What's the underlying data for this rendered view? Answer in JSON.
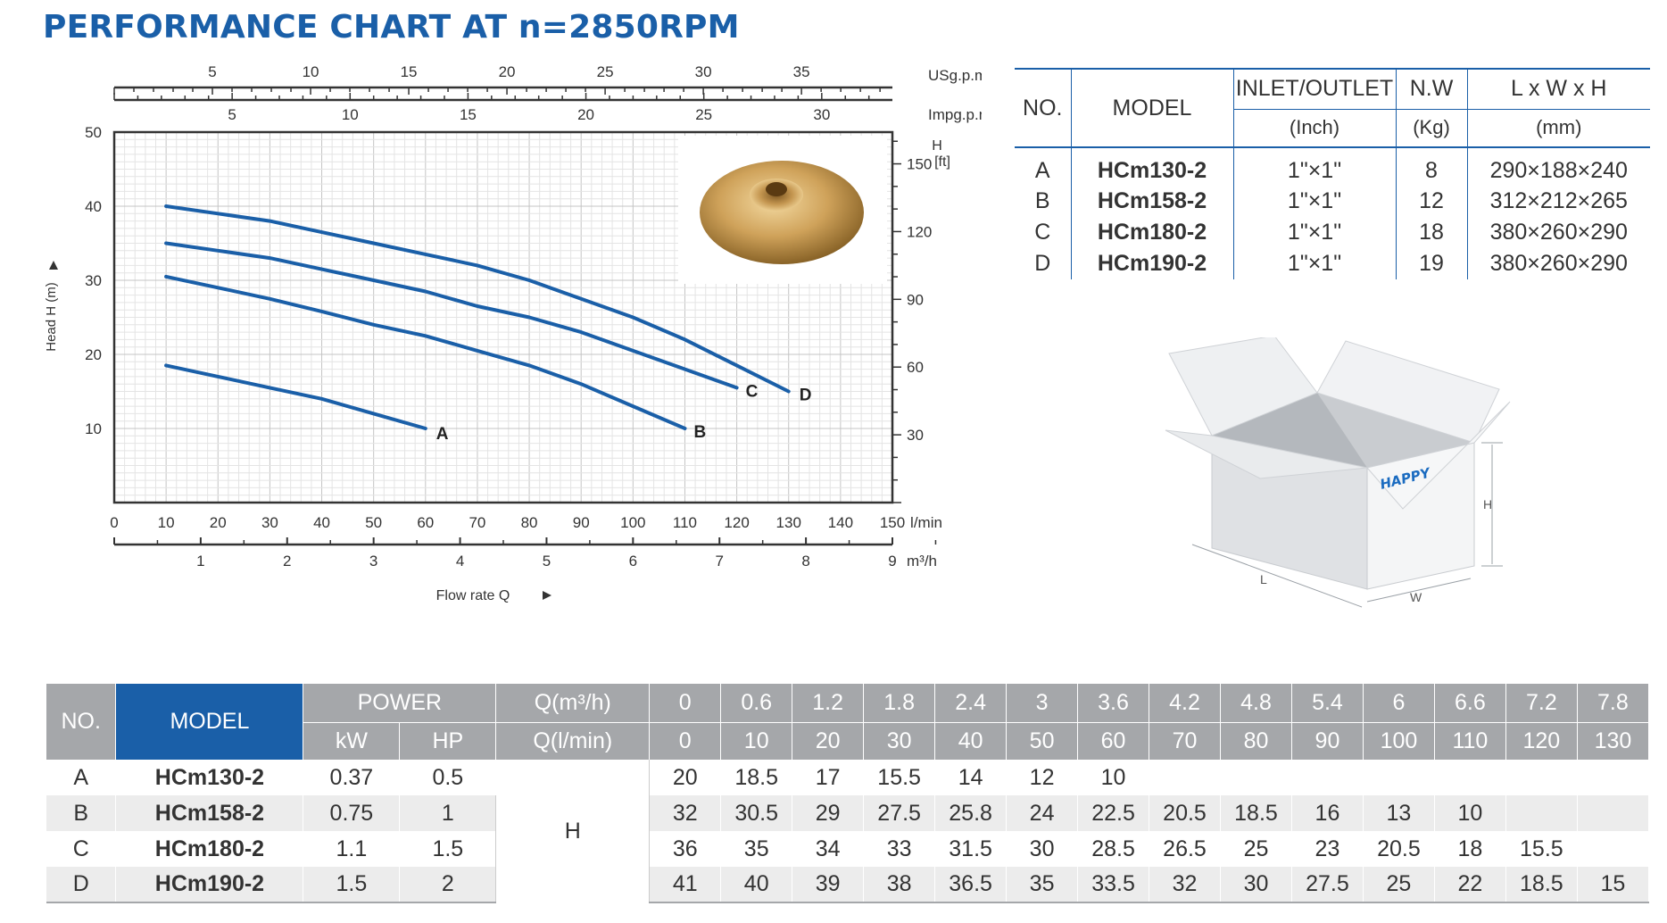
{
  "title": "PERFORMANCE CHART AT n=2850RPM",
  "chart_data": {
    "type": "line",
    "x_unit": "l/min",
    "xlim": [
      0,
      150
    ],
    "ylim": [
      0,
      50
    ],
    "ylabel": "Head H (m)",
    "xlabel": "Flow rate Q",
    "y_ticks": [
      10,
      20,
      30,
      40,
      50
    ],
    "x_ticks_lmin": [
      0,
      10,
      20,
      30,
      40,
      50,
      60,
      70,
      80,
      90,
      100,
      110,
      120,
      130,
      140,
      150
    ],
    "x_ticks_m3h": [
      1,
      2,
      3,
      4,
      5,
      6,
      7,
      8,
      9
    ],
    "x_unit_m3h": "m³/h",
    "x_ticks_usgpm": [
      5,
      10,
      15,
      20,
      25,
      30,
      35
    ],
    "x_unit_usgpm": "USg.p.m",
    "x_ticks_impgpm": [
      5,
      10,
      15,
      20,
      25,
      30
    ],
    "x_unit_impgpm": "Impg.p.m",
    "right_axis_label_top": "H",
    "right_axis_label_unit": "[ft]",
    "right_ticks_ft": [
      30,
      60,
      90,
      120,
      150
    ],
    "series": [
      {
        "name": "A",
        "x": [
          10,
          20,
          30,
          40,
          50,
          60
        ],
        "y": [
          18.5,
          17,
          15.5,
          14,
          12,
          10
        ]
      },
      {
        "name": "B",
        "x": [
          10,
          20,
          30,
          40,
          50,
          60,
          70,
          80,
          90,
          100,
          110
        ],
        "y": [
          30.5,
          29,
          27.5,
          25.8,
          24,
          22.5,
          20.5,
          18.5,
          16,
          13,
          10
        ]
      },
      {
        "name": "C",
        "x": [
          10,
          20,
          30,
          40,
          50,
          60,
          70,
          80,
          90,
          100,
          110,
          120
        ],
        "y": [
          35,
          34,
          33,
          31.5,
          30,
          28.5,
          26.5,
          25,
          23,
          20.5,
          18,
          15.5
        ]
      },
      {
        "name": "D",
        "x": [
          10,
          20,
          30,
          40,
          50,
          60,
          70,
          80,
          90,
          100,
          110,
          120,
          130
        ],
        "y": [
          40,
          39,
          38,
          36.5,
          35,
          33.5,
          32,
          30,
          27.5,
          25,
          22,
          18.5,
          15
        ]
      }
    ],
    "line_color": "#1a5fa8",
    "grid": true
  },
  "spec_table": {
    "headers": {
      "no": "NO.",
      "model": "MODEL",
      "inlet": "INLET/OUTLET",
      "inlet_unit": "(Inch)",
      "nw": "N.W",
      "nw_unit": "(Kg)",
      "dims": "L x W x H",
      "dims_unit": "(mm)"
    },
    "rows": [
      {
        "no": "A",
        "model": "HCm130-2",
        "inlet": "1\"×1\"",
        "nw": "8",
        "dims": "290×188×240"
      },
      {
        "no": "B",
        "model": "HCm158-2",
        "inlet": "1\"×1\"",
        "nw": "12",
        "dims": "312×212×265"
      },
      {
        "no": "C",
        "model": "HCm180-2",
        "inlet": "1\"×1\"",
        "nw": "18",
        "dims": "380×260×290"
      },
      {
        "no": "D",
        "model": "HCm190-2",
        "inlet": "1\"×1\"",
        "nw": "19",
        "dims": "380×260×290"
      }
    ]
  },
  "box": {
    "brand": "HAPPY",
    "label_h": "H",
    "label_l": "L",
    "label_w": "W"
  },
  "data_table": {
    "headers": {
      "no": "NO.",
      "model": "MODEL",
      "power": "POWER",
      "kw": "kW",
      "hp": "HP",
      "q_m3h": "Q(m³/h)",
      "q_lmin": "Q(l/min)"
    },
    "q_m3h_values": [
      "0",
      "0.6",
      "1.2",
      "1.8",
      "2.4",
      "3",
      "3.6",
      "4.2",
      "4.8",
      "5.4",
      "6",
      "6.6",
      "7.2",
      "7.8"
    ],
    "q_lmin_values": [
      "0",
      "10",
      "20",
      "30",
      "40",
      "50",
      "60",
      "70",
      "80",
      "90",
      "100",
      "110",
      "120",
      "130"
    ],
    "h_label": "H",
    "rows": [
      {
        "no": "A",
        "model": "HCm130-2",
        "kw": "0.37",
        "hp": "0.5",
        "heads": [
          "20",
          "18.5",
          "17",
          "15.5",
          "14",
          "12",
          "10",
          "",
          "",
          "",
          "",
          "",
          "",
          ""
        ]
      },
      {
        "no": "B",
        "model": "HCm158-2",
        "kw": "0.75",
        "hp": "1",
        "heads": [
          "32",
          "30.5",
          "29",
          "27.5",
          "25.8",
          "24",
          "22.5",
          "20.5",
          "18.5",
          "16",
          "13",
          "10",
          "",
          ""
        ]
      },
      {
        "no": "C",
        "model": "HCm180-2",
        "kw": "1.1",
        "hp": "1.5",
        "heads": [
          "36",
          "35",
          "34",
          "33",
          "31.5",
          "30",
          "28.5",
          "26.5",
          "25",
          "23",
          "20.5",
          "18",
          "15.5",
          ""
        ]
      },
      {
        "no": "D",
        "model": "HCm190-2",
        "kw": "1.5",
        "hp": "2",
        "heads": [
          "41",
          "40",
          "39",
          "38",
          "36.5",
          "35",
          "33.5",
          "32",
          "30",
          "27.5",
          "25",
          "22",
          "18.5",
          "15"
        ]
      }
    ]
  }
}
